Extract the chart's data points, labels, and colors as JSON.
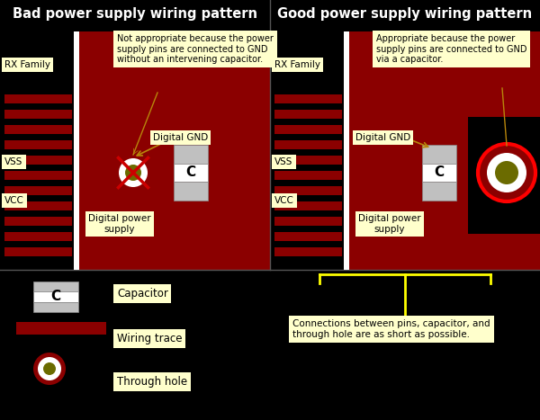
{
  "title_bad": "Bad power supply wiring pattern",
  "title_good": "Good power supply wiring pattern",
  "bg_color": "#000000",
  "dark_red": "#8B0000",
  "light_gray": "#C0C0C0",
  "mid_gray": "#A0A0A0",
  "white": "#FFFFFF",
  "yellow_label_bg": "#FFFFCC",
  "olive": "#6B6B00",
  "yellow_line": "#FFFF00",
  "red_x": "#CC0000",
  "label_bad": "Not appropriate because the power\nsupply pins are connected to GND\nwithout an intervening capacitor.",
  "label_good": "Appropriate because the power\nsupply pins are connected to GND\nvia a capacitor.",
  "label_bottom": "Connections between pins, capacitor, and\nthrough hole are as short as possible.",
  "rx_family": "RX Family",
  "vss": "VSS",
  "vcc": "VCC",
  "digital_gnd": "Digital GND",
  "digital_ps": "Digital power\nsupply",
  "cap_label": "C",
  "legend_cap": "Capacitor",
  "legend_trace": "Wiring trace",
  "legend_hole": "Through hole"
}
